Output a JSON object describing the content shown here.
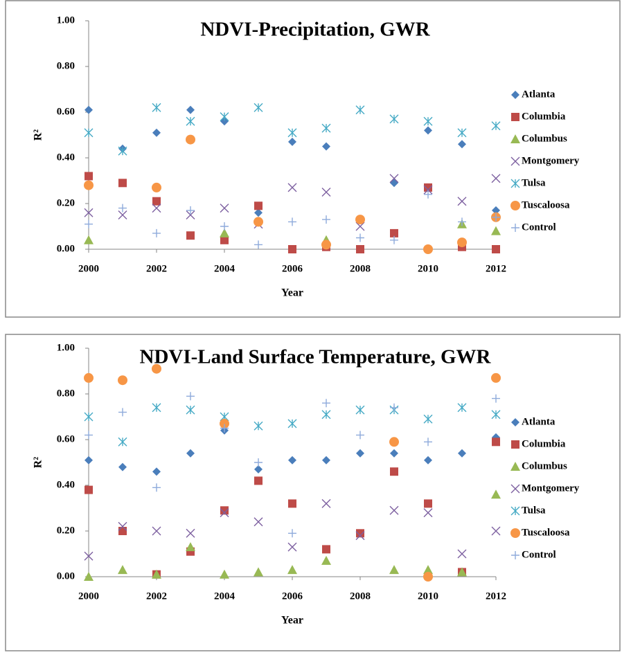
{
  "chart_data": [
    {
      "type": "scatter",
      "title": "NDVI-Precipitation, GWR",
      "xlabel": "Year",
      "ylabel": "R²",
      "x": [
        2000,
        2001,
        2002,
        2003,
        2004,
        2005,
        2006,
        2007,
        2008,
        2009,
        2010,
        2011,
        2012
      ],
      "xlim": [
        2000,
        2012
      ],
      "xticks": [
        2000,
        2002,
        2004,
        2006,
        2008,
        2010,
        2012
      ],
      "ylim": [
        0,
        1
      ],
      "yticks": [
        {
          "value": 0,
          "label": "0.00"
        },
        {
          "value": 0.2,
          "label": "0.20"
        },
        {
          "value": 0.4,
          "label": "0.40"
        },
        {
          "value": 0.6,
          "label": "0.60"
        },
        {
          "value": 0.8,
          "label": "0.80"
        },
        {
          "value": 1,
          "label": "1.00"
        }
      ],
      "legend": "right",
      "series": [
        {
          "name": "Atlanta",
          "color": "#4a7ebb",
          "marker": "diamond",
          "values": [
            0.61,
            0.44,
            0.51,
            0.61,
            0.56,
            0.16,
            0.47,
            0.45,
            null,
            0.29,
            0.52,
            0.46,
            0.17
          ]
        },
        {
          "name": "Columbia",
          "color": "#be4b48",
          "marker": "square",
          "values": [
            0.32,
            0.29,
            0.21,
            0.06,
            0.04,
            0.19,
            0,
            0.01,
            0,
            0.07,
            0.27,
            0.01,
            0
          ]
        },
        {
          "name": "Columbus",
          "color": "#98b954",
          "marker": "triangle",
          "values": [
            0.04,
            null,
            null,
            null,
            0.07,
            null,
            null,
            0.04,
            null,
            null,
            null,
            0.11,
            0.08
          ]
        },
        {
          "name": "Montgomery",
          "color": "#7d60a0",
          "marker": "x",
          "values": [
            0.16,
            0.15,
            0.18,
            0.15,
            0.18,
            0.11,
            0.27,
            0.25,
            0.1,
            0.31,
            0.26,
            0.21,
            0.31
          ]
        },
        {
          "name": "Tulsa",
          "color": "#46aac5",
          "marker": "star",
          "values": [
            0.51,
            0.43,
            0.62,
            0.56,
            0.58,
            0.62,
            0.51,
            0.53,
            0.61,
            0.57,
            0.56,
            0.51,
            0.54
          ]
        },
        {
          "name": "Tuscaloosa",
          "color": "#f79646",
          "marker": "circle",
          "values": [
            0.28,
            null,
            0.27,
            0.48,
            null,
            0.12,
            null,
            0.02,
            0.13,
            null,
            0,
            0.03,
            0.14
          ]
        },
        {
          "name": "Control",
          "color": "#8eaadb",
          "marker": "plus",
          "values": [
            0.11,
            0.18,
            0.07,
            0.17,
            0.1,
            0.02,
            0.12,
            0.13,
            0.05,
            0.04,
            0.24,
            0.12,
            0.14
          ]
        }
      ]
    },
    {
      "type": "scatter",
      "title": "NDVI-Land Surface Temperature, GWR",
      "xlabel": "Year",
      "ylabel": "R²",
      "x": [
        2000,
        2001,
        2002,
        2003,
        2004,
        2005,
        2006,
        2007,
        2008,
        2009,
        2010,
        2011,
        2012
      ],
      "xlim": [
        2000,
        2012
      ],
      "xticks": [
        2000,
        2002,
        2004,
        2006,
        2008,
        2010,
        2012
      ],
      "ylim": [
        0,
        1
      ],
      "yticks": [
        {
          "value": 0,
          "label": "0.00"
        },
        {
          "value": 0.2,
          "label": "0.20"
        },
        {
          "value": 0.4,
          "label": "0.40"
        },
        {
          "value": 0.6,
          "label": "0.60"
        },
        {
          "value": 0.8,
          "label": "0.80"
        },
        {
          "value": 1,
          "label": "1.00"
        }
      ],
      "legend": "right",
      "series": [
        {
          "name": "Atlanta",
          "color": "#4a7ebb",
          "marker": "diamond",
          "values": [
            0.51,
            0.48,
            0.46,
            0.54,
            0.64,
            0.47,
            0.51,
            0.51,
            0.54,
            0.54,
            0.51,
            0.54,
            0.61
          ]
        },
        {
          "name": "Columbia",
          "color": "#be4b48",
          "marker": "square",
          "values": [
            0.38,
            0.2,
            0.01,
            0.11,
            0.29,
            0.42,
            0.32,
            0.12,
            0.19,
            0.46,
            0.32,
            0.02,
            0.59
          ]
        },
        {
          "name": "Columbus",
          "color": "#98b954",
          "marker": "triangle",
          "values": [
            0,
            0.03,
            0.01,
            0.13,
            0.01,
            0.02,
            0.03,
            0.07,
            null,
            0.03,
            0.03,
            0.02,
            0.36
          ]
        },
        {
          "name": "Montgomery",
          "color": "#7d60a0",
          "marker": "x",
          "values": [
            0.09,
            0.22,
            0.2,
            0.19,
            0.28,
            0.24,
            0.13,
            0.32,
            0.18,
            0.29,
            0.28,
            0.1,
            0.2
          ]
        },
        {
          "name": "Tulsa",
          "color": "#46aac5",
          "marker": "star",
          "values": [
            0.7,
            0.59,
            0.74,
            0.73,
            0.7,
            0.66,
            0.67,
            0.71,
            0.73,
            0.73,
            0.69,
            0.74,
            0.71
          ]
        },
        {
          "name": "Tuscaloosa",
          "color": "#f79646",
          "marker": "circle",
          "values": [
            0.87,
            0.86,
            0.91,
            null,
            0.67,
            null,
            null,
            null,
            null,
            0.59,
            0,
            null,
            0.87
          ]
        },
        {
          "name": "Control",
          "color": "#8eaadb",
          "marker": "plus",
          "values": [
            0.62,
            0.72,
            0.39,
            0.79,
            0.65,
            0.5,
            0.19,
            0.76,
            0.62,
            0.74,
            0.59,
            null,
            0.78
          ]
        }
      ]
    }
  ]
}
